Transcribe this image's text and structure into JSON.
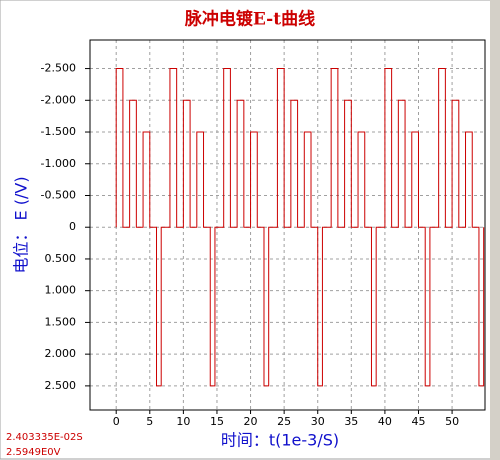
{
  "chart_data": {
    "type": "line",
    "title": "脉冲电镀E-t曲线",
    "x_label": "时间：t(1e-3/S)",
    "y_label": "电位：  E (/V)",
    "cursor_x_text": "2.403335E-02S",
    "cursor_y_text": "2.5949E0V",
    "grid": true,
    "xlim": [
      -3.9,
      54.9
    ],
    "ylim": [
      2.88,
      -2.95
    ],
    "xticks": [
      0,
      5,
      10,
      15,
      20,
      25,
      30,
      35,
      40,
      45,
      50
    ],
    "yticks": [
      {
        "value": -2.5,
        "label": "-2.500"
      },
      {
        "value": -2,
        "label": "-2.000"
      },
      {
        "value": -1.5,
        "label": "-1.500"
      },
      {
        "value": -1,
        "label": "-1.000"
      },
      {
        "value": -0.5,
        "label": "-0.500"
      },
      0,
      {
        "value": 0.5,
        "label": "0.500"
      },
      {
        "value": 1,
        "label": "1.000"
      },
      {
        "value": 1.5,
        "label": "1.500"
      },
      {
        "value": 2,
        "label": "2.000"
      },
      {
        "value": 2.5,
        "label": "2.500"
      }
    ],
    "x": [
      0,
      0,
      1,
      1,
      2,
      2,
      3,
      3,
      4,
      4,
      5,
      5,
      6,
      6,
      6.7,
      6.7,
      8,
      8,
      9,
      9,
      10,
      10,
      11,
      11,
      12,
      12,
      13,
      13,
      14,
      14,
      14.7,
      14.7,
      16,
      16,
      17,
      17,
      18,
      18,
      19,
      19,
      20,
      20,
      21,
      21,
      22,
      22,
      22.7,
      22.7,
      24,
      24,
      25,
      25,
      26,
      26,
      27,
      27,
      28,
      28,
      29,
      29,
      30,
      30,
      30.7,
      30.7,
      32,
      32,
      33,
      33,
      34,
      34,
      35,
      35,
      36,
      36,
      37,
      37,
      38,
      38,
      38.7,
      38.7,
      40,
      40,
      41,
      41,
      42,
      42,
      43,
      43,
      44,
      44,
      45,
      45,
      46,
      46,
      46.7,
      46.7,
      48,
      48,
      49,
      49,
      50,
      50,
      51,
      51,
      52,
      52,
      53,
      53,
      54,
      54,
      54.7,
      54.7
    ],
    "series": [
      {
        "color": "#cc0000",
        "values": [
          0,
          -2.5,
          -2.5,
          0,
          0,
          -2,
          -2,
          0,
          0,
          -1.5,
          -1.5,
          0,
          0,
          2.5,
          2.5,
          0,
          0,
          -2.5,
          -2.5,
          0,
          0,
          -2,
          -2,
          0,
          0,
          -1.5,
          -1.5,
          0,
          0,
          2.5,
          2.5,
          0,
          0,
          -2.5,
          -2.5,
          0,
          0,
          -2,
          -2,
          0,
          0,
          -1.5,
          -1.5,
          0,
          0,
          2.5,
          2.5,
          0,
          0,
          -2.5,
          -2.5,
          0,
          0,
          -2,
          -2,
          0,
          0,
          -1.5,
          -1.5,
          0,
          0,
          2.5,
          2.5,
          0,
          0,
          -2.5,
          -2.5,
          0,
          0,
          -2,
          -2,
          0,
          0,
          -1.5,
          -1.5,
          0,
          0,
          2.5,
          2.5,
          0,
          0,
          -2.5,
          -2.5,
          0,
          0,
          -2,
          -2,
          0,
          0,
          -1.5,
          -1.5,
          0,
          0,
          2.5,
          2.5,
          0,
          0,
          -2.5,
          -2.5,
          0,
          0,
          -2,
          -2,
          0,
          0,
          -1.5,
          -1.5,
          0,
          0,
          2.5,
          2.5,
          0
        ]
      }
    ]
  }
}
